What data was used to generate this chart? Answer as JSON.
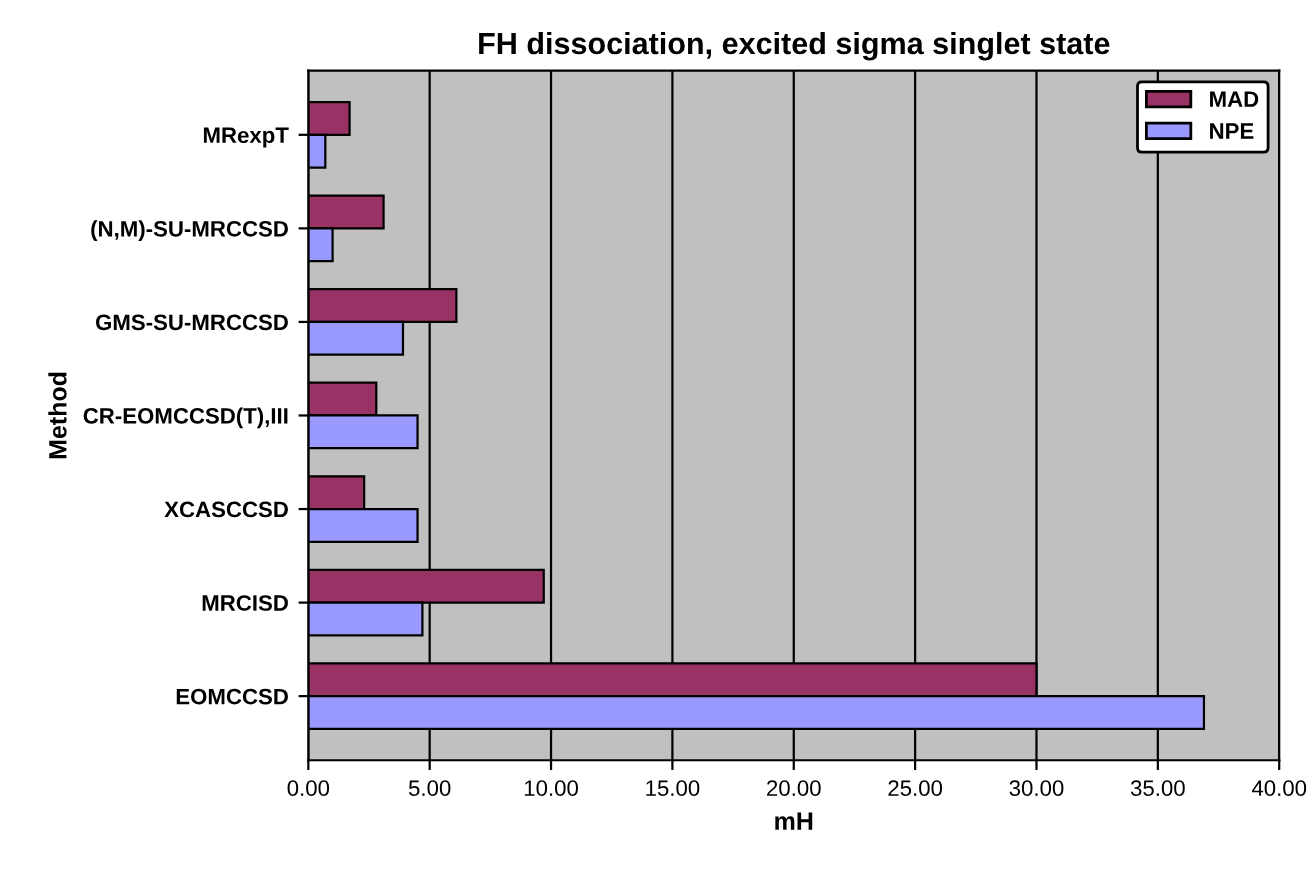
{
  "chart_data": {
    "type": "bar",
    "orientation": "horizontal",
    "title": "FH dissociation, excited sigma singlet state",
    "xlabel": "mH",
    "ylabel": "Method",
    "categories": [
      "MRexpT",
      "(N,M)-SU-MRCCSD",
      "GMS-SU-MRCCSD",
      "CR-EOMCCSD(T),III",
      "XCASCCSD",
      "MRCISD",
      "EOMCCSD"
    ],
    "series": [
      {
        "name": "MAD",
        "color": "#993366",
        "values": [
          1.7,
          3.1,
          6.1,
          2.8,
          2.3,
          9.7,
          30.0
        ]
      },
      {
        "name": "NPE",
        "color": "#9999ff",
        "values": [
          0.7,
          1.0,
          3.9,
          4.5,
          4.5,
          4.7,
          36.9
        ]
      }
    ],
    "xlim": [
      0,
      40
    ],
    "xticks": [
      {
        "value": 0,
        "label": "0.00"
      },
      {
        "value": 5,
        "label": "5.00"
      },
      {
        "value": 10,
        "label": "10.00"
      },
      {
        "value": 15,
        "label": "15.00"
      },
      {
        "value": 20,
        "label": "20.00"
      },
      {
        "value": 25,
        "label": "25.00"
      },
      {
        "value": 30,
        "label": "30.00"
      },
      {
        "value": 35,
        "label": "35.00"
      },
      {
        "value": 40,
        "label": "40.00"
      }
    ],
    "grid": "x",
    "legend": "top right"
  }
}
